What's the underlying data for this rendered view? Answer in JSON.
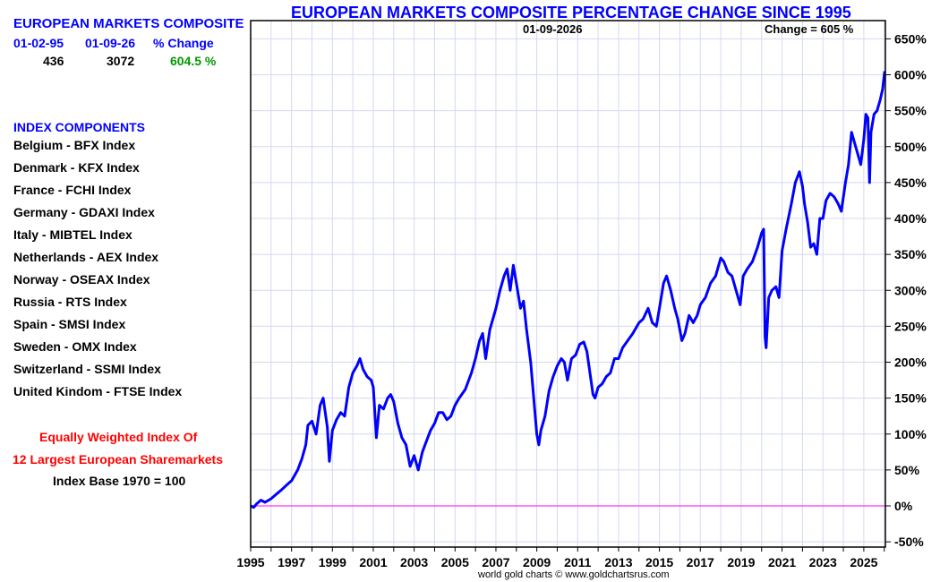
{
  "left_panel": {
    "title": "EUROPEAN MARKETS COMPOSITE",
    "columns": [
      "01-02-95",
      "01-09-26",
      "% Change"
    ],
    "values": [
      "436",
      "3072",
      "604.5 %"
    ],
    "components_title": "INDEX COMPONENTS",
    "components": [
      "Belgium - BFX Index",
      "Denmark - KFX Index",
      "France - FCHI Index",
      "Germany - GDAXI Index",
      "Italy - MIBTEL Index",
      "Netherlands - AEX Index",
      "Norway - OSEAX Index",
      "Russia - RTS Index",
      "Spain - SMSI Index",
      "Sweden - OMX Index",
      "Switzerland - SSMI Index",
      "United Kindom - FTSE Index"
    ],
    "note_line1": "Equally Weighted Index Of",
    "note_line2": "12 Largest European Sharemarkets",
    "note_line3": "Index Base 1970 = 100"
  },
  "colors": {
    "title": "#0000ff",
    "series": "#0000ff",
    "zero_line": "#ff33ff",
    "grid": "#d4d8f0",
    "positive_change": "#009900",
    "note": "#ff0000"
  },
  "footer": "world gold charts © www.goldchartsrus.com",
  "chart_data": {
    "type": "line",
    "title": "EUROPEAN MARKETS COMPOSITE PERCENTAGE CHANGE SINCE 1995",
    "annotations": {
      "date": "01-09-2026",
      "change": "Change = 605 %"
    },
    "xlabel": "",
    "ylabel": "",
    "xlim": [
      1995,
      2026.05
    ],
    "ylim": [
      -55,
      680
    ],
    "x_ticks": [
      "1995",
      "1997",
      "1999",
      "2001",
      "2003",
      "2005",
      "2007",
      "2009",
      "2011",
      "2013",
      "2015",
      "2017",
      "2019",
      "2021",
      "2023",
      "2025"
    ],
    "y_ticks": [
      "-50%",
      "0%",
      "50%",
      "100%",
      "150%",
      "200%",
      "250%",
      "300%",
      "350%",
      "400%",
      "450%",
      "500%",
      "550%",
      "600%",
      "650%"
    ],
    "y_tick_values": [
      -50,
      0,
      50,
      100,
      150,
      200,
      250,
      300,
      350,
      400,
      450,
      500,
      550,
      600,
      650
    ],
    "grid": true,
    "reference_line": 0,
    "series": [
      {
        "name": "European Markets Composite % Change",
        "x": [
          1995.0,
          1995.15,
          1995.3,
          1995.5,
          1995.7,
          1996.0,
          1996.2,
          1996.5,
          1996.8,
          1997.0,
          1997.3,
          1997.5,
          1997.7,
          1997.8,
          1998.0,
          1998.2,
          1998.4,
          1998.55,
          1998.75,
          1998.85,
          1999.0,
          1999.2,
          1999.4,
          1999.6,
          1999.8,
          2000.0,
          2000.2,
          2000.35,
          2000.5,
          2000.7,
          2000.9,
          2001.0,
          2001.15,
          2001.3,
          2001.5,
          2001.7,
          2001.85,
          2002.0,
          2002.2,
          2002.4,
          2002.6,
          2002.8,
          2003.0,
          2003.2,
          2003.4,
          2003.6,
          2003.8,
          2004.0,
          2004.2,
          2004.4,
          2004.6,
          2004.8,
          2005.0,
          2005.2,
          2005.5,
          2005.8,
          2006.0,
          2006.2,
          2006.35,
          2006.5,
          2006.7,
          2007.0,
          2007.2,
          2007.4,
          2007.55,
          2007.7,
          2007.85,
          2008.0,
          2008.2,
          2008.35,
          2008.5,
          2008.7,
          2008.85,
          2009.0,
          2009.1,
          2009.2,
          2009.4,
          2009.6,
          2009.8,
          2010.0,
          2010.2,
          2010.35,
          2010.5,
          2010.7,
          2010.9,
          2011.1,
          2011.3,
          2011.45,
          2011.6,
          2011.75,
          2011.85,
          2012.0,
          2012.2,
          2012.4,
          2012.6,
          2012.8,
          2013.0,
          2013.2,
          2013.45,
          2013.7,
          2014.0,
          2014.2,
          2014.45,
          2014.65,
          2014.85,
          2015.0,
          2015.2,
          2015.35,
          2015.55,
          2015.75,
          2015.9,
          2016.1,
          2016.25,
          2016.45,
          2016.65,
          2016.85,
          2017.0,
          2017.25,
          2017.5,
          2017.75,
          2018.0,
          2018.15,
          2018.35,
          2018.55,
          2018.75,
          2018.95,
          2019.1,
          2019.3,
          2019.55,
          2019.8,
          2020.0,
          2020.1,
          2020.17,
          2020.22,
          2020.35,
          2020.5,
          2020.7,
          2020.85,
          2021.0,
          2021.2,
          2021.45,
          2021.65,
          2021.85,
          2022.0,
          2022.1,
          2022.25,
          2022.4,
          2022.55,
          2022.7,
          2022.85,
          2023.0,
          2023.15,
          2023.35,
          2023.55,
          2023.75,
          2023.9,
          2024.1,
          2024.25,
          2024.4,
          2024.55,
          2024.7,
          2024.85,
          2025.0,
          2025.1,
          2025.2,
          2025.28,
          2025.35,
          2025.5,
          2025.65,
          2025.8,
          2025.92,
          2026.02
        ],
        "values": [
          0,
          -2,
          3,
          8,
          5,
          10,
          15,
          22,
          30,
          35,
          50,
          65,
          85,
          112,
          118,
          100,
          140,
          150,
          110,
          62,
          105,
          120,
          130,
          125,
          165,
          185,
          195,
          205,
          190,
          180,
          175,
          165,
          95,
          140,
          135,
          150,
          155,
          145,
          115,
          95,
          85,
          55,
          70,
          50,
          75,
          90,
          105,
          115,
          130,
          130,
          120,
          125,
          140,
          150,
          162,
          185,
          205,
          230,
          240,
          205,
          245,
          275,
          300,
          320,
          330,
          300,
          335,
          310,
          275,
          285,
          245,
          200,
          150,
          100,
          85,
          105,
          125,
          160,
          180,
          195,
          205,
          200,
          175,
          205,
          210,
          225,
          228,
          215,
          185,
          155,
          150,
          165,
          170,
          180,
          185,
          205,
          205,
          220,
          230,
          240,
          255,
          260,
          275,
          255,
          250,
          275,
          310,
          320,
          300,
          275,
          260,
          230,
          240,
          265,
          255,
          265,
          280,
          290,
          310,
          320,
          345,
          340,
          325,
          320,
          300,
          280,
          320,
          330,
          340,
          360,
          380,
          385,
          235,
          220,
          290,
          300,
          305,
          290,
          355,
          385,
          420,
          450,
          465,
          445,
          420,
          395,
          360,
          365,
          350,
          400,
          400,
          425,
          435,
          430,
          420,
          410,
          450,
          475,
          520,
          505,
          490,
          475,
          510,
          545,
          540,
          450,
          520,
          545,
          550,
          565,
          580,
          605
        ]
      }
    ]
  }
}
